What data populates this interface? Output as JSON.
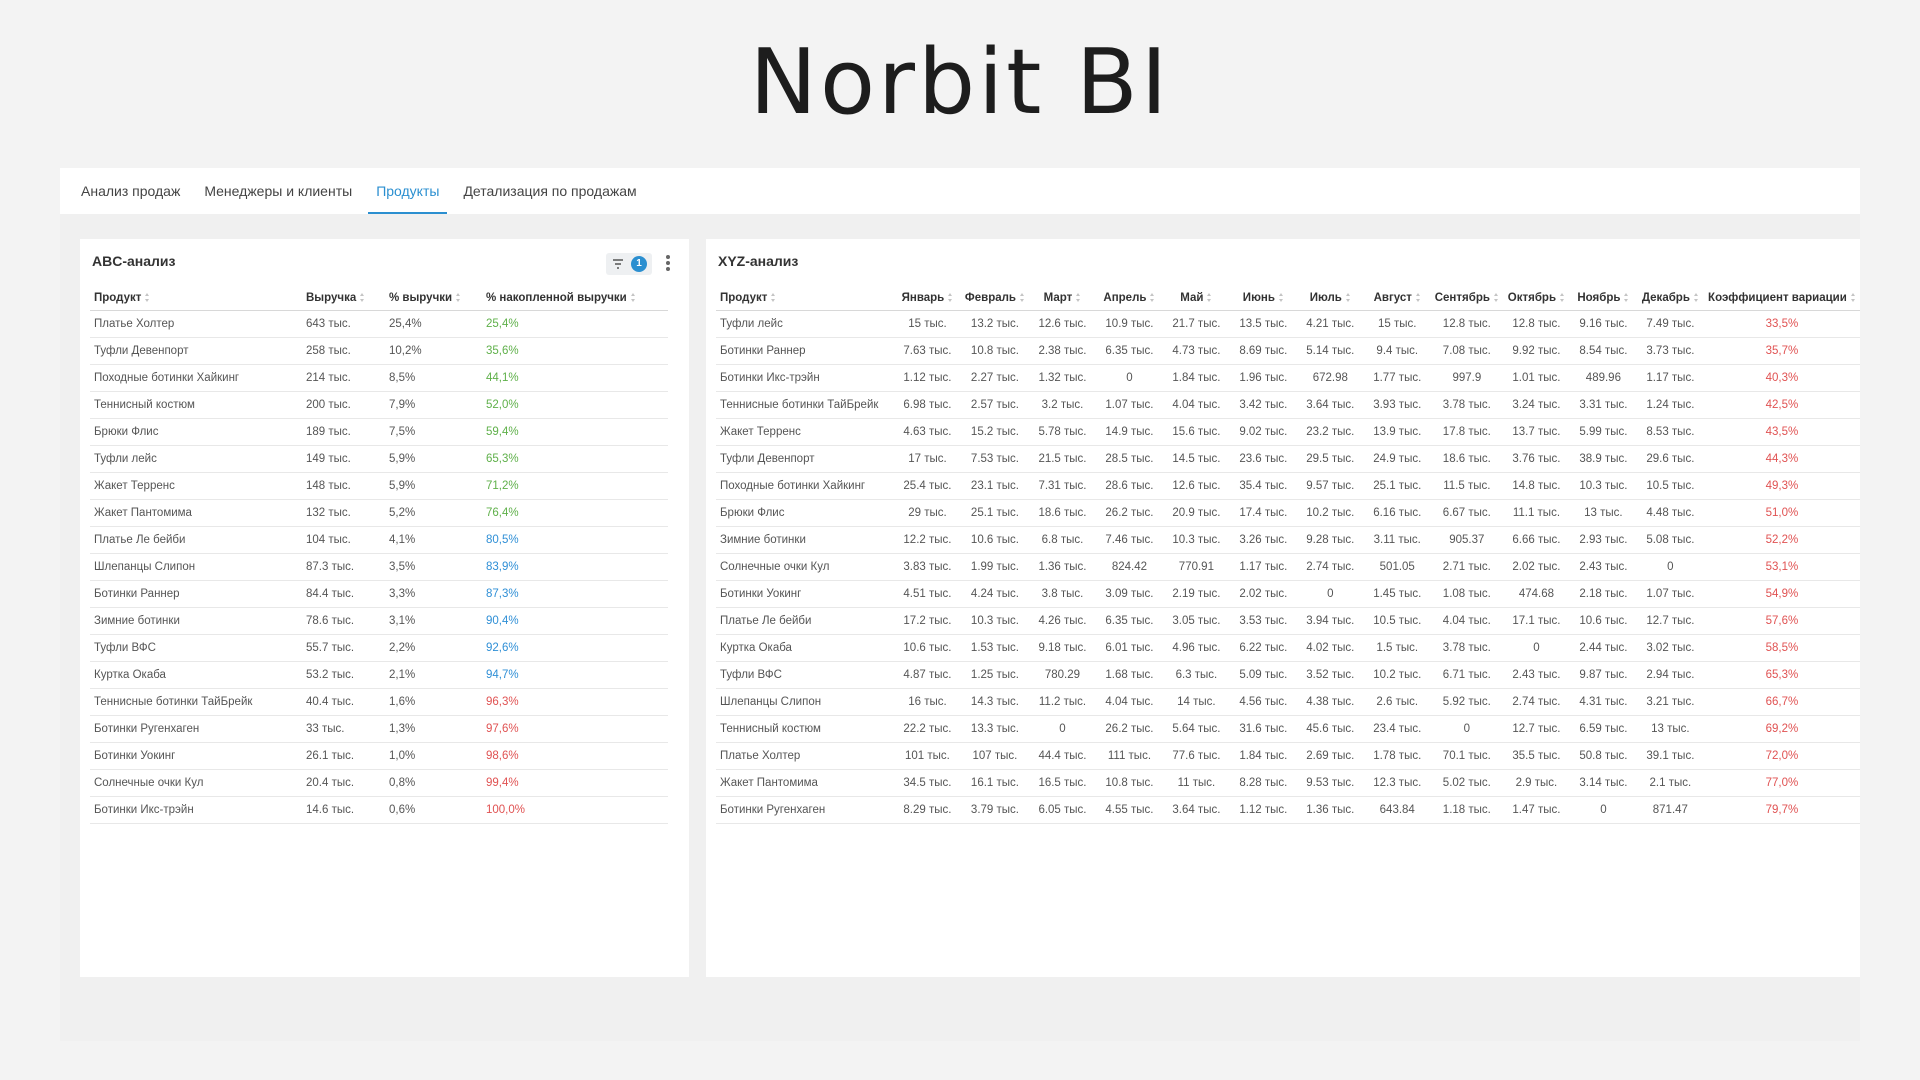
{
  "header": {
    "title": "Norbit BI"
  },
  "tabs": {
    "items": [
      "Анализ продаж",
      "Менеджеры и клиенты",
      "Продукты",
      "Детализация по продажам"
    ],
    "active": 2
  },
  "abc": {
    "title": "ABC-анализ",
    "filter_count": "1",
    "columns": [
      "Продукт",
      "Выручка",
      "% выручки",
      "% накопленной выручки"
    ],
    "rows": [
      [
        "Платье Холтер",
        "643 тыс.",
        "25,4%",
        "25,4%"
      ],
      [
        "Туфли Девенпорт",
        "258 тыс.",
        "10,2%",
        "35,6%"
      ],
      [
        "Походные ботинки Хайкинг",
        "214 тыс.",
        "8,5%",
        "44,1%"
      ],
      [
        "Теннисный костюм",
        "200 тыс.",
        "7,9%",
        "52,0%"
      ],
      [
        "Брюки Флис",
        "189 тыс.",
        "7,5%",
        "59,4%"
      ],
      [
        "Туфли лейс",
        "149 тыс.",
        "5,9%",
        "65,3%"
      ],
      [
        "Жакет Терренс",
        "148 тыс.",
        "5,9%",
        "71,2%"
      ],
      [
        "Жакет Пантомима",
        "132 тыс.",
        "5,2%",
        "76,4%"
      ],
      [
        "Платье Ле бейби",
        "104 тыс.",
        "4,1%",
        "80,5%"
      ],
      [
        "Шлепанцы Слипон",
        "87.3 тыс.",
        "3,5%",
        "83,9%"
      ],
      [
        "Ботинки Раннер",
        "84.4 тыс.",
        "3,3%",
        "87,3%"
      ],
      [
        "Зимние ботинки",
        "78.6 тыс.",
        "3,1%",
        "90,4%"
      ],
      [
        "Туфли ВФС",
        "55.7 тыс.",
        "2,2%",
        "92,6%"
      ],
      [
        "Куртка Окаба",
        "53.2 тыс.",
        "2,1%",
        "94,7%"
      ],
      [
        "Теннисные ботинки ТайБрейк",
        "40.4 тыс.",
        "1,6%",
        "96,3%"
      ],
      [
        "Ботинки Ругенхаген",
        "33 тыс.",
        "1,3%",
        "97,6%"
      ],
      [
        "Ботинки Уокинг",
        "26.1 тыс.",
        "1,0%",
        "98,6%"
      ],
      [
        "Солнечные очки Кул",
        "20.4 тыс.",
        "0,8%",
        "99,4%"
      ],
      [
        "Ботинки Икс-трэйн",
        "14.6 тыс.",
        "0,6%",
        "100,0%"
      ]
    ],
    "cumulative_colors": [
      "#5fb04a",
      "#5fb04a",
      "#5fb04a",
      "#5fb04a",
      "#5fb04a",
      "#5fb04a",
      "#5fb04a",
      "#5fb04a",
      "#2f8fd6",
      "#2f8fd6",
      "#2f8fd6",
      "#2f8fd6",
      "#2f8fd6",
      "#2f8fd6",
      "#e05252",
      "#e05252",
      "#e05252",
      "#e05252",
      "#e05252"
    ]
  },
  "xyz": {
    "title": "XYZ-анализ",
    "columns": [
      "Продукт",
      "Январь",
      "Февраль",
      "Март",
      "Апрель",
      "Май",
      "Июнь",
      "Июль",
      "Август",
      "Сентябрь",
      "Октябрь",
      "Ноябрь",
      "Декабрь",
      "Коэффициент вариации"
    ],
    "rows": [
      [
        "Туфли лейс",
        "15 тыс.",
        "13.2 тыс.",
        "12.6 тыс.",
        "10.9 тыс.",
        "21.7 тыс.",
        "13.5 тыс.",
        "4.21 тыс.",
        "15 тыс.",
        "12.8 тыс.",
        "12.8 тыс.",
        "9.16 тыс.",
        "7.49 тыс.",
        "33,5%"
      ],
      [
        "Ботинки Раннер",
        "7.63 тыс.",
        "10.8 тыс.",
        "2.38 тыс.",
        "6.35 тыс.",
        "4.73 тыс.",
        "8.69 тыс.",
        "5.14 тыс.",
        "9.4 тыс.",
        "7.08 тыс.",
        "9.92 тыс.",
        "8.54 тыс.",
        "3.73 тыс.",
        "35,7%"
      ],
      [
        "Ботинки Икс-трэйн",
        "1.12 тыс.",
        "2.27 тыс.",
        "1.32 тыс.",
        "0",
        "1.84 тыс.",
        "1.96 тыс.",
        "672.98",
        "1.77 тыс.",
        "997.9",
        "1.01 тыс.",
        "489.96",
        "1.17 тыс.",
        "40,3%"
      ],
      [
        "Теннисные ботинки ТайБрейк",
        "6.98 тыс.",
        "2.57 тыс.",
        "3.2 тыс.",
        "1.07 тыс.",
        "4.04 тыс.",
        "3.42 тыс.",
        "3.64 тыс.",
        "3.93 тыс.",
        "3.78 тыс.",
        "3.24 тыс.",
        "3.31 тыс.",
        "1.24 тыс.",
        "42,5%"
      ],
      [
        "Жакет Терренс",
        "4.63 тыс.",
        "15.2 тыс.",
        "5.78 тыс.",
        "14.9 тыс.",
        "15.6 тыс.",
        "9.02 тыс.",
        "23.2 тыс.",
        "13.9 тыс.",
        "17.8 тыс.",
        "13.7 тыс.",
        "5.99 тыс.",
        "8.53 тыс.",
        "43,5%"
      ],
      [
        "Туфли Девенпорт",
        "17 тыс.",
        "7.53 тыс.",
        "21.5 тыс.",
        "28.5 тыс.",
        "14.5 тыс.",
        "23.6 тыс.",
        "29.5 тыс.",
        "24.9 тыс.",
        "18.6 тыс.",
        "3.76 тыс.",
        "38.9 тыс.",
        "29.6 тыс.",
        "44,3%"
      ],
      [
        "Походные ботинки Хайкинг",
        "25.4 тыс.",
        "23.1 тыс.",
        "7.31 тыс.",
        "28.6 тыс.",
        "12.6 тыс.",
        "35.4 тыс.",
        "9.57 тыс.",
        "25.1 тыс.",
        "11.5 тыс.",
        "14.8 тыс.",
        "10.3 тыс.",
        "10.5 тыс.",
        "49,3%"
      ],
      [
        "Брюки Флис",
        "29 тыс.",
        "25.1 тыс.",
        "18.6 тыс.",
        "26.2 тыс.",
        "20.9 тыс.",
        "17.4 тыс.",
        "10.2 тыс.",
        "6.16 тыс.",
        "6.67 тыс.",
        "11.1 тыс.",
        "13 тыс.",
        "4.48 тыс.",
        "51,0%"
      ],
      [
        "Зимние ботинки",
        "12.2 тыс.",
        "10.6 тыс.",
        "6.8 тыс.",
        "7.46 тыс.",
        "10.3 тыс.",
        "3.26 тыс.",
        "9.28 тыс.",
        "3.11 тыс.",
        "905.37",
        "6.66 тыс.",
        "2.93 тыс.",
        "5.08 тыс.",
        "52,2%"
      ],
      [
        "Солнечные очки Кул",
        "3.83 тыс.",
        "1.99 тыс.",
        "1.36 тыс.",
        "824.42",
        "770.91",
        "1.17 тыс.",
        "2.74 тыс.",
        "501.05",
        "2.71 тыс.",
        "2.02 тыс.",
        "2.43 тыс.",
        "0",
        "53,1%"
      ],
      [
        "Ботинки Уокинг",
        "4.51 тыс.",
        "4.24 тыс.",
        "3.8 тыс.",
        "3.09 тыс.",
        "2.19 тыс.",
        "2.02 тыс.",
        "0",
        "1.45 тыс.",
        "1.08 тыс.",
        "474.68",
        "2.18 тыс.",
        "1.07 тыс.",
        "54,9%"
      ],
      [
        "Платье Ле бейби",
        "17.2 тыс.",
        "10.3 тыс.",
        "4.26 тыс.",
        "6.35 тыс.",
        "3.05 тыс.",
        "3.53 тыс.",
        "3.94 тыс.",
        "10.5 тыс.",
        "4.04 тыс.",
        "17.1 тыс.",
        "10.6 тыс.",
        "12.7 тыс.",
        "57,6%"
      ],
      [
        "Куртка Окаба",
        "10.6 тыс.",
        "1.53 тыс.",
        "9.18 тыс.",
        "6.01 тыс.",
        "4.96 тыс.",
        "6.22 тыс.",
        "4.02 тыс.",
        "1.5 тыс.",
        "3.78 тыс.",
        "0",
        "2.44 тыс.",
        "3.02 тыс.",
        "58,5%"
      ],
      [
        "Туфли ВФС",
        "4.87 тыс.",
        "1.25 тыс.",
        "780.29",
        "1.68 тыс.",
        "6.3 тыс.",
        "5.09 тыс.",
        "3.52 тыс.",
        "10.2 тыс.",
        "6.71 тыс.",
        "2.43 тыс.",
        "9.87 тыс.",
        "2.94 тыс.",
        "65,3%"
      ],
      [
        "Шлепанцы Слипон",
        "16 тыс.",
        "14.3 тыс.",
        "11.2 тыс.",
        "4.04 тыс.",
        "14 тыс.",
        "4.56 тыс.",
        "4.38 тыс.",
        "2.6 тыс.",
        "5.92 тыс.",
        "2.74 тыс.",
        "4.31 тыс.",
        "3.21 тыс.",
        "66,7%"
      ],
      [
        "Теннисный костюм",
        "22.2 тыс.",
        "13.3 тыс.",
        "0",
        "26.2 тыс.",
        "5.64 тыс.",
        "31.6 тыс.",
        "45.6 тыс.",
        "23.4 тыс.",
        "0",
        "12.7 тыс.",
        "6.59 тыс.",
        "13 тыс.",
        "69,2%"
      ],
      [
        "Платье Холтер",
        "101 тыс.",
        "107 тыс.",
        "44.4 тыс.",
        "111 тыс.",
        "77.6 тыс.",
        "1.84 тыс.",
        "2.69 тыс.",
        "1.78 тыс.",
        "70.1 тыс.",
        "35.5 тыс.",
        "50.8 тыс.",
        "39.1 тыс.",
        "72,0%"
      ],
      [
        "Жакет Пантомима",
        "34.5 тыс.",
        "16.1 тыс.",
        "16.5 тыс.",
        "10.8 тыс.",
        "11 тыс.",
        "8.28 тыс.",
        "9.53 тыс.",
        "12.3 тыс.",
        "5.02 тыс.",
        "2.9 тыс.",
        "3.14 тыс.",
        "2.1 тыс.",
        "77,0%"
      ],
      [
        "Ботинки Ругенхаген",
        "8.29 тыс.",
        "3.79 тыс.",
        "6.05 тыс.",
        "4.55 тыс.",
        "3.64 тыс.",
        "1.12 тыс.",
        "1.36 тыс.",
        "643.84",
        "1.18 тыс.",
        "1.47 тыс.",
        "0",
        "871.47",
        "79,7%"
      ]
    ],
    "cv_color": "#e05252"
  }
}
